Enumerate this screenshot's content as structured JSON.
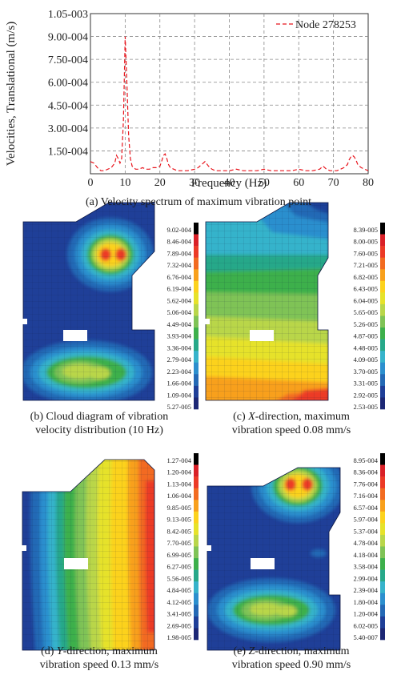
{
  "chart_data": {
    "type": "line",
    "xlabel": "Frequency (Hz)",
    "ylabel": "Velocities, Translational (m/s)",
    "xlim": [
      0,
      80
    ],
    "ylim": [
      0,
      0.00105
    ],
    "x_ticks": [
      "0",
      "10",
      "20",
      "30",
      "40",
      "50",
      "60",
      "70",
      "80"
    ],
    "y_ticks": [
      "1.05-003",
      "9.00-004",
      "7.50-004",
      "6.00-004",
      "4.50-004",
      "3.00-004",
      "1.50-004"
    ],
    "y_tick_values": [
      0.00105,
      0.0009,
      0.00075,
      0.0006,
      0.00045,
      0.0003,
      0.00015
    ],
    "grid": true,
    "legend_position": "top-right",
    "series": [
      {
        "name": "Node 278253",
        "color": "#e8141c",
        "style": "dashed",
        "x": [
          0,
          1,
          2,
          3,
          4,
          5,
          6,
          7,
          7.5,
          8,
          8.5,
          9,
          9.5,
          10,
          10.5,
          11,
          11.5,
          12,
          13,
          14,
          15,
          16,
          17,
          18,
          19,
          20,
          20.5,
          21,
          21.5,
          22,
          22.5,
          23,
          24,
          25,
          26,
          28,
          30,
          31,
          32,
          33,
          34,
          35,
          36,
          38,
          40,
          42,
          44,
          46,
          48,
          50,
          52,
          54,
          56,
          58,
          60,
          62,
          64,
          66,
          67,
          68,
          69,
          70,
          71,
          72,
          73,
          74,
          74.5,
          75,
          75.5,
          76,
          76.5,
          77,
          78,
          79,
          80
        ],
        "y": [
          8e-05,
          7e-05,
          4e-05,
          2e-05,
          2e-05,
          3e-05,
          4e-05,
          7e-05,
          0.00012,
          0.0001,
          7e-05,
          0.0001,
          0.00035,
          0.0009,
          0.0006,
          0.00025,
          0.0001,
          5e-05,
          3e-05,
          3e-05,
          4e-05,
          3e-05,
          3e-05,
          4e-05,
          4e-05,
          5e-05,
          8e-05,
          0.00012,
          0.00013,
          0.0001,
          6e-05,
          4e-05,
          3e-05,
          2e-05,
          2e-05,
          2e-05,
          3e-05,
          4e-05,
          6e-05,
          8e-05,
          5e-05,
          3e-05,
          2e-05,
          2e-05,
          2e-05,
          3e-05,
          2e-05,
          2e-05,
          2e-05,
          3e-05,
          2e-05,
          2e-05,
          2e-05,
          2e-05,
          3e-05,
          2e-05,
          2e-05,
          3e-05,
          5e-05,
          3e-05,
          2e-05,
          2e-05,
          2e-05,
          3e-05,
          4e-05,
          6e-05,
          9e-05,
          0.00011,
          0.00012,
          0.00011,
          9e-05,
          6e-05,
          4e-05,
          3e-05,
          2e-05
        ]
      }
    ]
  },
  "captions": {
    "a": "(a) Velocity spectrum of maximum vibration point",
    "b1": "(b) Cloud diagram of vibration",
    "b2": "velocity distribution (10 Hz)",
    "c_prefix": "(c) ",
    "c_axis": "X",
    "c_rest": "-direction, maximum",
    "c2": "vibration speed 0.08 mm/s",
    "d_prefix": "(d) ",
    "d_axis": "Y",
    "d_rest": "-direction, maximum",
    "d2": "vibration speed 0.13 mm/s",
    "e_prefix": "(e) ",
    "e_axis": "Z",
    "e_rest": "-direction, maximum",
    "e2": "vibration speed 0.90 mm/s"
  },
  "contour_plots": [
    {
      "id": "b",
      "legend": [
        "9.02-004",
        "8.46-004",
        "7.89-004",
        "7.32-004",
        "6.76-004",
        "6.19-004",
        "5.62-004",
        "5.06-004",
        "4.49-004",
        "3.93-004",
        "3.36-004",
        "2.79-004",
        "2.23-004",
        "1.66-004",
        "1.09-004",
        "5.27-005"
      ]
    },
    {
      "id": "c",
      "legend": [
        "8.39-005",
        "8.00-005",
        "7.60-005",
        "7.21-005",
        "6.82-005",
        "6.43-005",
        "6.04-005",
        "5.65-005",
        "5.26-005",
        "4.87-005",
        "4.48-005",
        "4.09-005",
        "3.70-005",
        "3.31-005",
        "2.92-005",
        "2.53-005"
      ]
    },
    {
      "id": "d",
      "legend": [
        "1.27-004",
        "1.20-004",
        "1.13-004",
        "1.06-004",
        "9.85-005",
        "9.13-005",
        "8.42-005",
        "7.70-005",
        "6.99-005",
        "6.27-005",
        "5.56-005",
        "4.84-005",
        "4.12-005",
        "3.41-005",
        "2.69-005",
        "1.98-005"
      ]
    },
    {
      "id": "e",
      "legend": [
        "8.95-004",
        "8.36-004",
        "7.76-004",
        "7.16-004",
        "6.57-004",
        "5.97-004",
        "5.37-004",
        "4.78-004",
        "4.18-004",
        "3.58-004",
        "2.99-004",
        "2.39-004",
        "1.80-004",
        "1.20-004",
        "6.02-005",
        "5.40-007"
      ]
    }
  ],
  "palette": [
    "#000000",
    "#d92027",
    "#ec3a26",
    "#f26b21",
    "#f8a01c",
    "#fcd21d",
    "#e6e22a",
    "#b9d64a",
    "#7fc356",
    "#3db04b",
    "#27a889",
    "#36b3cb",
    "#2c8fce",
    "#2469b5",
    "#1f3f98",
    "#1c2775"
  ]
}
